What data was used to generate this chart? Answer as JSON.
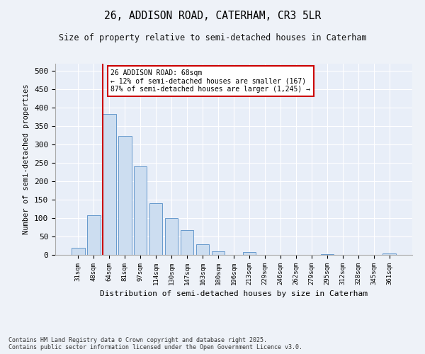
{
  "title1": "26, ADDISON ROAD, CATERHAM, CR3 5LR",
  "title2": "Size of property relative to semi-detached houses in Caterham",
  "xlabel": "Distribution of semi-detached houses by size in Caterham",
  "ylabel": "Number of semi-detached properties",
  "categories": [
    "31sqm",
    "48sqm",
    "64sqm",
    "81sqm",
    "97sqm",
    "114sqm",
    "130sqm",
    "147sqm",
    "163sqm",
    "180sqm",
    "196sqm",
    "213sqm",
    "229sqm",
    "246sqm",
    "262sqm",
    "279sqm",
    "295sqm",
    "312sqm",
    "328sqm",
    "345sqm",
    "361sqm"
  ],
  "values": [
    19,
    108,
    383,
    323,
    241,
    141,
    101,
    68,
    29,
    10,
    0,
    7,
    0,
    0,
    0,
    0,
    2,
    0,
    0,
    0,
    3
  ],
  "bar_color": "#ccddf0",
  "bar_edge_color": "#6699cc",
  "vline_color": "#cc0000",
  "annotation_text": "26 ADDISON ROAD: 68sqm\n← 12% of semi-detached houses are smaller (167)\n87% of semi-detached houses are larger (1,245) →",
  "annotation_box_color": "#ffffff",
  "annotation_box_edge": "#cc0000",
  "ylim": [
    0,
    520
  ],
  "yticks": [
    0,
    50,
    100,
    150,
    200,
    250,
    300,
    350,
    400,
    450,
    500
  ],
  "footer": "Contains HM Land Registry data © Crown copyright and database right 2025.\nContains public sector information licensed under the Open Government Licence v3.0.",
  "background_color": "#eef2f8",
  "plot_background": "#e8eef8"
}
